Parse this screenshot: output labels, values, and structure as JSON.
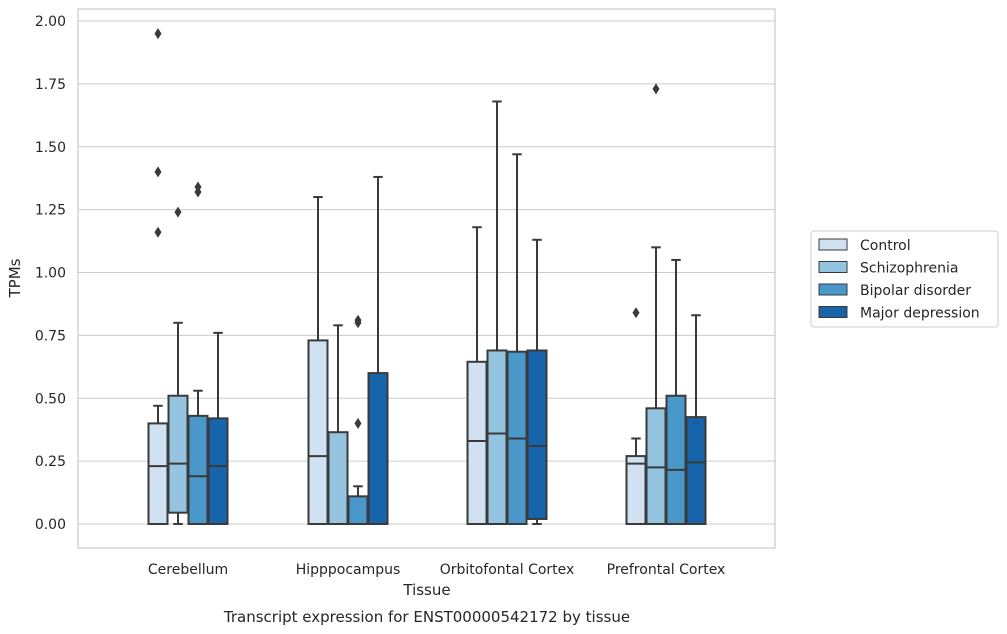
{
  "chart_data": {
    "type": "box",
    "title": "",
    "xlabel": "Tissue",
    "ylabel": "TPMs",
    "caption": "Transcript expression for ENST00000542172 by tissue",
    "ylim": [
      -0.1,
      2.05
    ],
    "yticks": [
      0.0,
      0.25,
      0.5,
      0.75,
      1.0,
      1.25,
      1.5,
      1.75,
      2.0
    ],
    "ytick_labels": [
      "0.00",
      "0.25",
      "0.50",
      "0.75",
      "1.00",
      "1.25",
      "1.50",
      "1.75",
      "2.00"
    ],
    "grid": "horizontal",
    "legend_position": "right",
    "categories": [
      "Cerebellum",
      "Hipppocampus",
      "Orbitofontal Cortex",
      "Prefrontal Cortex"
    ],
    "series": [
      {
        "name": "Control",
        "color": "#d0e1f2",
        "boxes": [
          {
            "q1": 0.0,
            "median": 0.23,
            "q3": 0.4,
            "whisker_low": 0.0,
            "whisker_high": 0.47,
            "outliers": [
              1.95,
              1.4,
              1.16
            ]
          },
          {
            "q1": 0.0,
            "median": 0.27,
            "q3": 0.73,
            "whisker_low": 0.0,
            "whisker_high": 1.3,
            "outliers": []
          },
          {
            "q1": 0.0,
            "median": 0.33,
            "q3": 0.645,
            "whisker_low": 0.0,
            "whisker_high": 1.18,
            "outliers": []
          },
          {
            "q1": 0.0,
            "median": 0.24,
            "q3": 0.27,
            "whisker_low": 0.0,
            "whisker_high": 0.34,
            "outliers": [
              0.84
            ]
          }
        ]
      },
      {
        "name": "Schizophrenia",
        "color": "#94c4df",
        "boxes": [
          {
            "q1": 0.045,
            "median": 0.24,
            "q3": 0.51,
            "whisker_low": 0.0,
            "whisker_high": 0.8,
            "outliers": [
              1.24
            ]
          },
          {
            "q1": 0.0,
            "median": 0.0,
            "q3": 0.365,
            "whisker_low": 0.0,
            "whisker_high": 0.79,
            "outliers": []
          },
          {
            "q1": 0.0,
            "median": 0.36,
            "q3": 0.69,
            "whisker_low": 0.0,
            "whisker_high": 1.68,
            "outliers": []
          },
          {
            "q1": 0.0,
            "median": 0.225,
            "q3": 0.46,
            "whisker_low": 0.0,
            "whisker_high": 1.1,
            "outliers": [
              1.73
            ]
          }
        ]
      },
      {
        "name": "Bipolar disorder",
        "color": "#4a98c9",
        "boxes": [
          {
            "q1": 0.0,
            "median": 0.19,
            "q3": 0.43,
            "whisker_low": 0.0,
            "whisker_high": 0.53,
            "outliers": [
              1.34,
              1.32
            ]
          },
          {
            "q1": 0.0,
            "median": 0.0,
            "q3": 0.11,
            "whisker_low": 0.0,
            "whisker_high": 0.15,
            "outliers": [
              0.81,
              0.8,
              0.4
            ]
          },
          {
            "q1": 0.0,
            "median": 0.34,
            "q3": 0.685,
            "whisker_low": 0.0,
            "whisker_high": 1.47,
            "outliers": []
          },
          {
            "q1": 0.0,
            "median": 0.215,
            "q3": 0.51,
            "whisker_low": 0.0,
            "whisker_high": 1.05,
            "outliers": []
          }
        ]
      },
      {
        "name": "Major depression",
        "color": "#1764ab",
        "boxes": [
          {
            "q1": 0.0,
            "median": 0.23,
            "q3": 0.42,
            "whisker_low": 0.0,
            "whisker_high": 0.76,
            "outliers": []
          },
          {
            "q1": 0.0,
            "median": 0.0,
            "q3": 0.6,
            "whisker_low": 0.0,
            "whisker_high": 1.38,
            "outliers": []
          },
          {
            "q1": 0.02,
            "median": 0.31,
            "q3": 0.69,
            "whisker_low": 0.0,
            "whisker_high": 1.13,
            "outliers": []
          },
          {
            "q1": 0.0,
            "median": 0.245,
            "q3": 0.425,
            "whisker_low": 0.0,
            "whisker_high": 0.83,
            "outliers": []
          }
        ]
      }
    ]
  }
}
